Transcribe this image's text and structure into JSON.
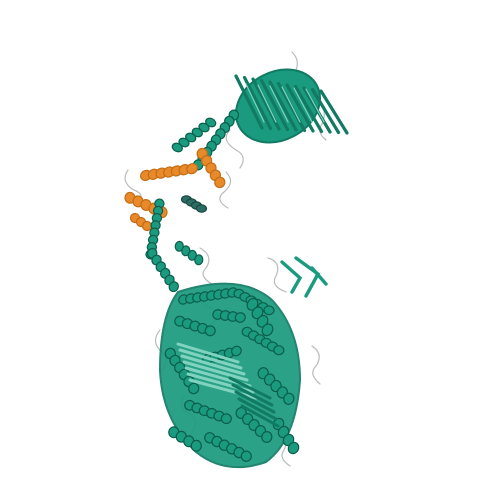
{
  "image": {
    "kind": "protein-structure-cartoon",
    "background_color": "#ffffff",
    "colors": {
      "primary_chain": "#1a9a7e",
      "primary_chain_dark": "#117a63",
      "highlight_region": "#e8892a",
      "highlight_region_dark": "#c46d16",
      "coil": "#b8bcbc",
      "helix_outline": "#0c5e4c"
    }
  }
}
